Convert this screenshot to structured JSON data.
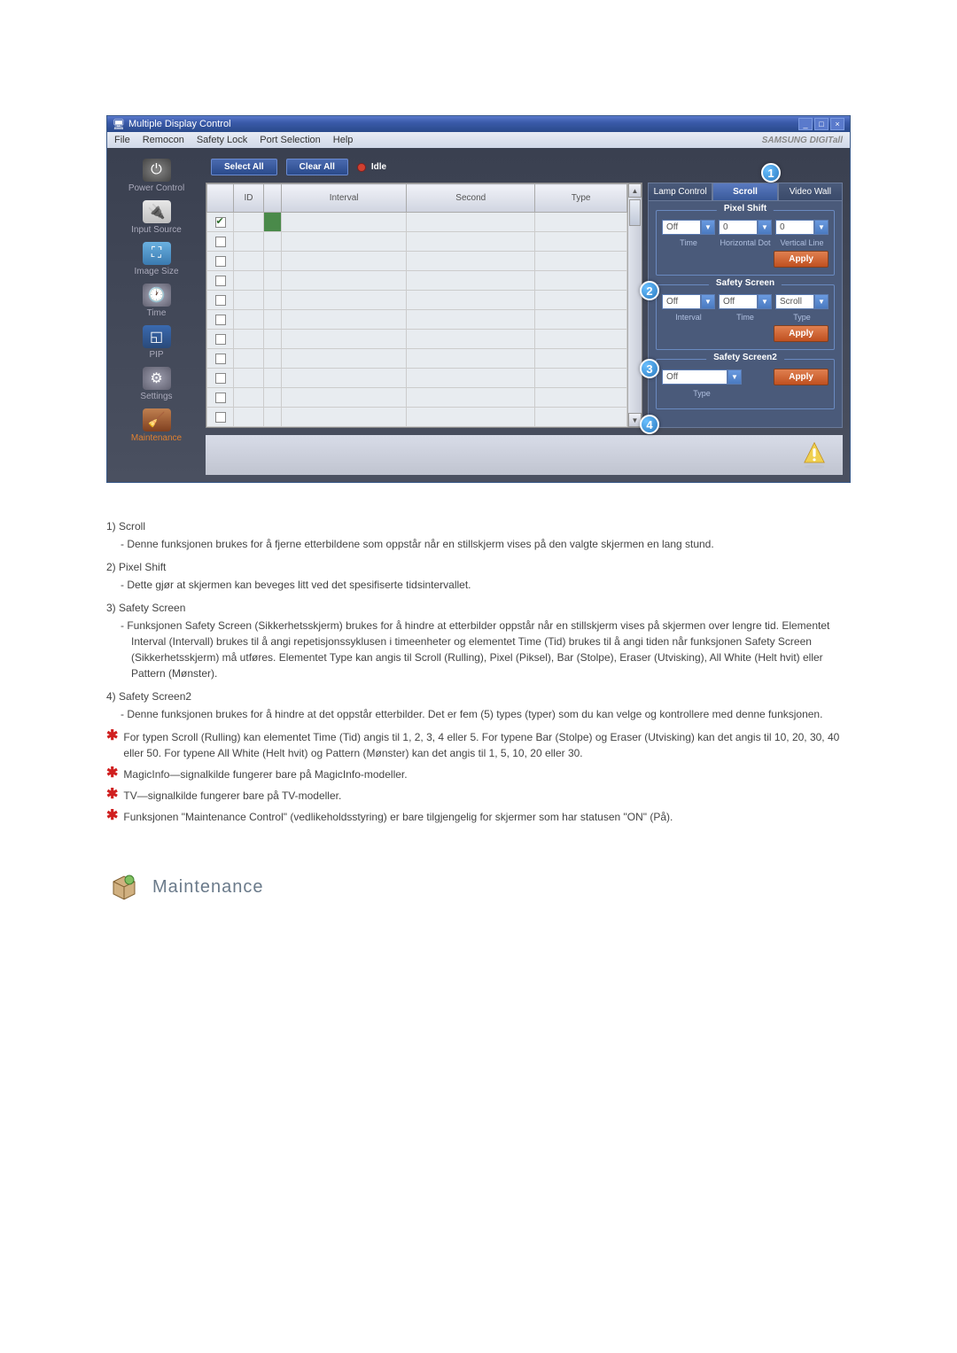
{
  "window": {
    "title": "Multiple Display Control",
    "brand": "SAMSUNG DIGITall"
  },
  "menu": {
    "file": "File",
    "remocon": "Remocon",
    "safety": "Safety Lock",
    "port": "Port Selection",
    "help": "Help"
  },
  "sidebar": {
    "power": "Power Control",
    "input": "Input Source",
    "image": "Image Size",
    "time": "Time",
    "pip": "PIP",
    "settings": "Settings",
    "maintenance": "Maintenance"
  },
  "actions": {
    "select_all": "Select All",
    "clear_all": "Clear All",
    "idle": "Idle"
  },
  "table": {
    "cols": [
      "",
      "ID",
      "",
      "Interval",
      "Second",
      "Type"
    ]
  },
  "tabs": {
    "lamp": "Lamp Control",
    "scroll": "Scroll",
    "video": "Video Wall"
  },
  "pixel_shift": {
    "legend": "Pixel Shift",
    "time_val": "Off",
    "hdot_val": "0",
    "vline_val": "0",
    "time_lbl": "Time",
    "hdot_lbl": "Horizontal Dot",
    "vline_lbl": "Vertical Line",
    "apply": "Apply"
  },
  "safety_screen": {
    "legend": "Safety Screen",
    "interval_val": "Off",
    "time_val": "Off",
    "type_val": "Scroll",
    "interval_lbl": "Interval",
    "time_lbl": "Time",
    "type_lbl": "Type",
    "apply": "Apply"
  },
  "safety_screen2": {
    "legend": "Safety Screen2",
    "type_val": "Off",
    "type_lbl": "Type",
    "apply": "Apply"
  },
  "callouts": {
    "c1": "1",
    "c2": "2",
    "c3": "3",
    "c4": "4"
  },
  "doc": {
    "items": [
      {
        "n": "1)",
        "t": "Scroll",
        "d": "- Denne funksjonen brukes for å fjerne etterbildene som oppstår når en stillskjerm vises på den valgte skjermen en lang stund."
      },
      {
        "n": "2)",
        "t": "Pixel Shift",
        "d": "- Dette gjør at skjermen kan beveges litt ved det spesifiserte tidsintervallet."
      },
      {
        "n": "3)",
        "t": "Safety Screen",
        "d": "- Funksjonen Safety Screen (Sikkerhetsskjerm) brukes for å hindre at etterbilder oppstår når en stillskjerm vises på skjermen over lengre tid.  Elementet Interval (Intervall) brukes til å angi repetisjonssyklusen i timeenheter og elementet Time (Tid) brukes til å angi tiden når funksjonen Safety Screen (Sikkerhetsskjerm) må utføres. Elementet Type kan angis til Scroll (Rulling), Pixel (Piksel), Bar (Stolpe), Eraser (Utvisking), All White (Helt hvit) eller Pattern (Mønster)."
      },
      {
        "n": "4)",
        "t": "Safety Screen2",
        "d": "- Denne funksjonen brukes for å hindre at det oppstår etterbilder. Det er fem (5) types (typer) som du kan velge og kontrollere med denne funksjonen."
      }
    ],
    "notes": [
      "For typen Scroll (Rulling) kan elementet Time (Tid) angis til 1, 2, 3, 4 eller 5. For typene Bar (Stolpe) og Eraser (Utvisking) kan det angis til 10, 20, 30, 40 eller 50. For typene All White (Helt hvit) og Pattern (Mønster) kan det angis til 1, 5, 10, 20 eller 30.",
      "MagicInfo—signalkilde fungerer bare på MagicInfo-modeller.",
      "TV—signalkilde fungerer bare på TV-modeller.",
      "Funksjonen \"Maintenance Control\" (vedlikeholdsstyring) er bare tilgjengelig for skjermer som har statusen \"ON\" (På)."
    ]
  },
  "section": {
    "title": "Maintenance"
  }
}
